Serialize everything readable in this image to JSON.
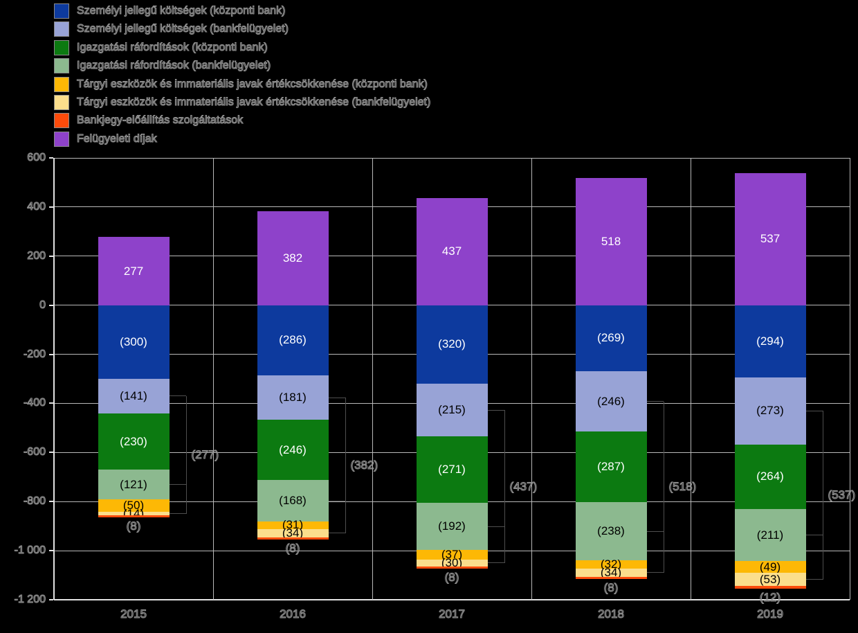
{
  "colors": {
    "background": "#000000",
    "grid": "#b9b9b9",
    "axis": "#e3e3e3",
    "ghost_text": "#949494",
    "bracket": "#4f4f4f",
    "label_light": "#ffffff",
    "label_dark": "#000000",
    "blue": "#0d3a9e",
    "lavender": "#98a3d6",
    "green": "#0c7a11",
    "sage": "#8cb98f",
    "amber": "#fdb805",
    "cream": "#fbde8c",
    "red": "#fc4b0b",
    "purple": "#8e42ca"
  },
  "legend": [
    {
      "key": "personnel-central",
      "color_key": "blue",
      "label": "Személyi jellegű költségek (központi bank)"
    },
    {
      "key": "personnel-supervision",
      "color_key": "lavender",
      "label": "Személyi jellegű költségek (bankfelügyelet)"
    },
    {
      "key": "admin-central",
      "color_key": "green",
      "label": "Igazgatási ráfordítások (központi bank)"
    },
    {
      "key": "admin-supervision",
      "color_key": "sage",
      "label": "Igazgatási ráfordítások (bankfelügyelet)"
    },
    {
      "key": "depreciation-central",
      "color_key": "amber",
      "label": "Tárgyi eszközök és immateriális javak értékcsökkenése (központi bank)"
    },
    {
      "key": "depreciation-supervision",
      "color_key": "cream",
      "label": "Tárgyi eszközök és immateriális javak értékcsökkenése (bankfelügyelet)"
    },
    {
      "key": "banknote-production",
      "color_key": "red",
      "label": "Bankjegy-előállítás szolgáltatások"
    },
    {
      "key": "supervisory-fees",
      "color_key": "purple",
      "label": "Felügyeleti díjak"
    }
  ],
  "chart_data": {
    "type": "bar",
    "stacked": true,
    "grid": true,
    "categories": [
      "2015",
      "2016",
      "2017",
      "2018",
      "2019"
    ],
    "ylim": [
      -1200,
      600
    ],
    "y_ticks": [
      {
        "value": 600,
        "label": "600"
      },
      {
        "value": 400,
        "label": "400"
      },
      {
        "value": 200,
        "label": "200"
      },
      {
        "value": 0,
        "label": "0"
      },
      {
        "value": -200,
        "label": "-200"
      },
      {
        "value": -400,
        "label": "-400"
      },
      {
        "value": -600,
        "label": "-600"
      },
      {
        "value": -800,
        "label": "-800"
      },
      {
        "value": -1000,
        "label": "-1 000"
      },
      {
        "value": -1200,
        "label": "-1 200"
      }
    ],
    "positive_series": {
      "key": "supervisory-fees",
      "name": "Felügyeleti díjak",
      "color_key": "purple",
      "values": [
        277,
        382,
        437,
        518,
        537
      ],
      "labels": [
        "277",
        "382",
        "437",
        "518",
        "537"
      ],
      "label_style": "light"
    },
    "negative_series": [
      {
        "key": "personnel-central",
        "name": "Személyi jellegű költségek (központi bank)",
        "color_key": "blue",
        "magnitudes": [
          300,
          286,
          320,
          269,
          294
        ],
        "labels": [
          "(300)",
          "(286)",
          "(320)",
          "(269)",
          "(294)"
        ],
        "label_style": "light"
      },
      {
        "key": "personnel-supervision",
        "name": "Személyi jellegű költségek (bankfelügyelet)",
        "color_key": "lavender",
        "magnitudes": [
          141,
          181,
          215,
          246,
          273
        ],
        "labels": [
          "(141)",
          "(181)",
          "(215)",
          "(246)",
          "(273)"
        ],
        "label_style": "dark"
      },
      {
        "key": "admin-central",
        "name": "Igazgatási ráfordítások (központi bank)",
        "color_key": "green",
        "magnitudes": [
          230,
          246,
          271,
          287,
          264
        ],
        "labels": [
          "(230)",
          "(246)",
          "(271)",
          "(287)",
          "(264)"
        ],
        "label_style": "light"
      },
      {
        "key": "admin-supervision",
        "name": "Igazgatási ráfordítások (bankfelügyelet)",
        "color_key": "sage",
        "magnitudes": [
          121,
          168,
          192,
          238,
          211
        ],
        "labels": [
          "(121)",
          "(168)",
          "(192)",
          "(238)",
          "(211)"
        ],
        "label_style": "dark"
      },
      {
        "key": "depreciation-central",
        "name": "Tárgyi eszközök és immateriális javak értékcsökkenése (központi bank)",
        "color_key": "amber",
        "magnitudes": [
          50,
          31,
          37,
          32,
          49
        ],
        "labels": [
          "(50)",
          "(31)",
          "(37)",
          "(32)",
          "(49)"
        ],
        "label_style": "dark"
      },
      {
        "key": "depreciation-supervision",
        "name": "Tárgyi eszközök és immateriális javak értékcsökkenése (bankfelügyelet)",
        "color_key": "cream",
        "magnitudes": [
          14,
          34,
          30,
          34,
          53
        ],
        "labels": [
          "(14)",
          "(34)",
          "(30)",
          "(34)",
          "(53)"
        ],
        "label_style": "dark"
      },
      {
        "key": "banknote-production",
        "name": "Bankjegy-előállítás szolgáltatások",
        "color_key": "red",
        "magnitudes": [
          8,
          8,
          8,
          8,
          12
        ],
        "labels": [
          "(8)",
          "(8)",
          "(8)",
          "(8)",
          "(12)"
        ],
        "label_style": "ghost-below"
      }
    ],
    "brackets": {
      "grouped_series_keys": [
        "personnel-supervision",
        "admin-supervision",
        "depreciation-supervision"
      ],
      "labels": [
        "(277)",
        "(382)",
        "(437)",
        "(518)",
        "(537)"
      ]
    }
  }
}
